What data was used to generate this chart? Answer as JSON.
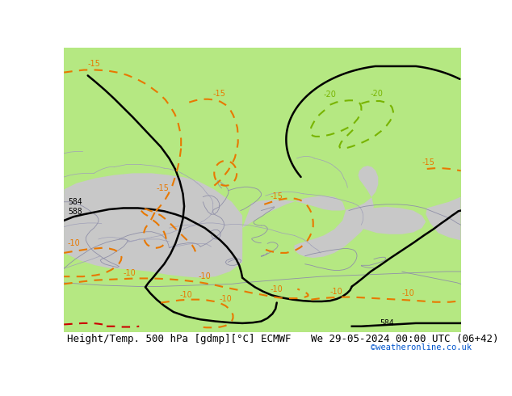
{
  "title_left": "Height/Temp. 500 hPa [gdmp][°C] ECMWF",
  "title_right": "We 29-05-2024 00:00 UTC (06+42)",
  "credit": "©weatheronline.co.uk",
  "bg_color": "#b5e882",
  "sea_color": "#c8c8c8",
  "contour_black_color": "#000000",
  "contour_orange_color": "#e87800",
  "contour_green_color": "#78b400",
  "footer_bg": "#ffffff",
  "footer_text_color": "#000000",
  "credit_color": "#0055cc",
  "font_size_footer": 9,
  "font_size_labels": 7
}
